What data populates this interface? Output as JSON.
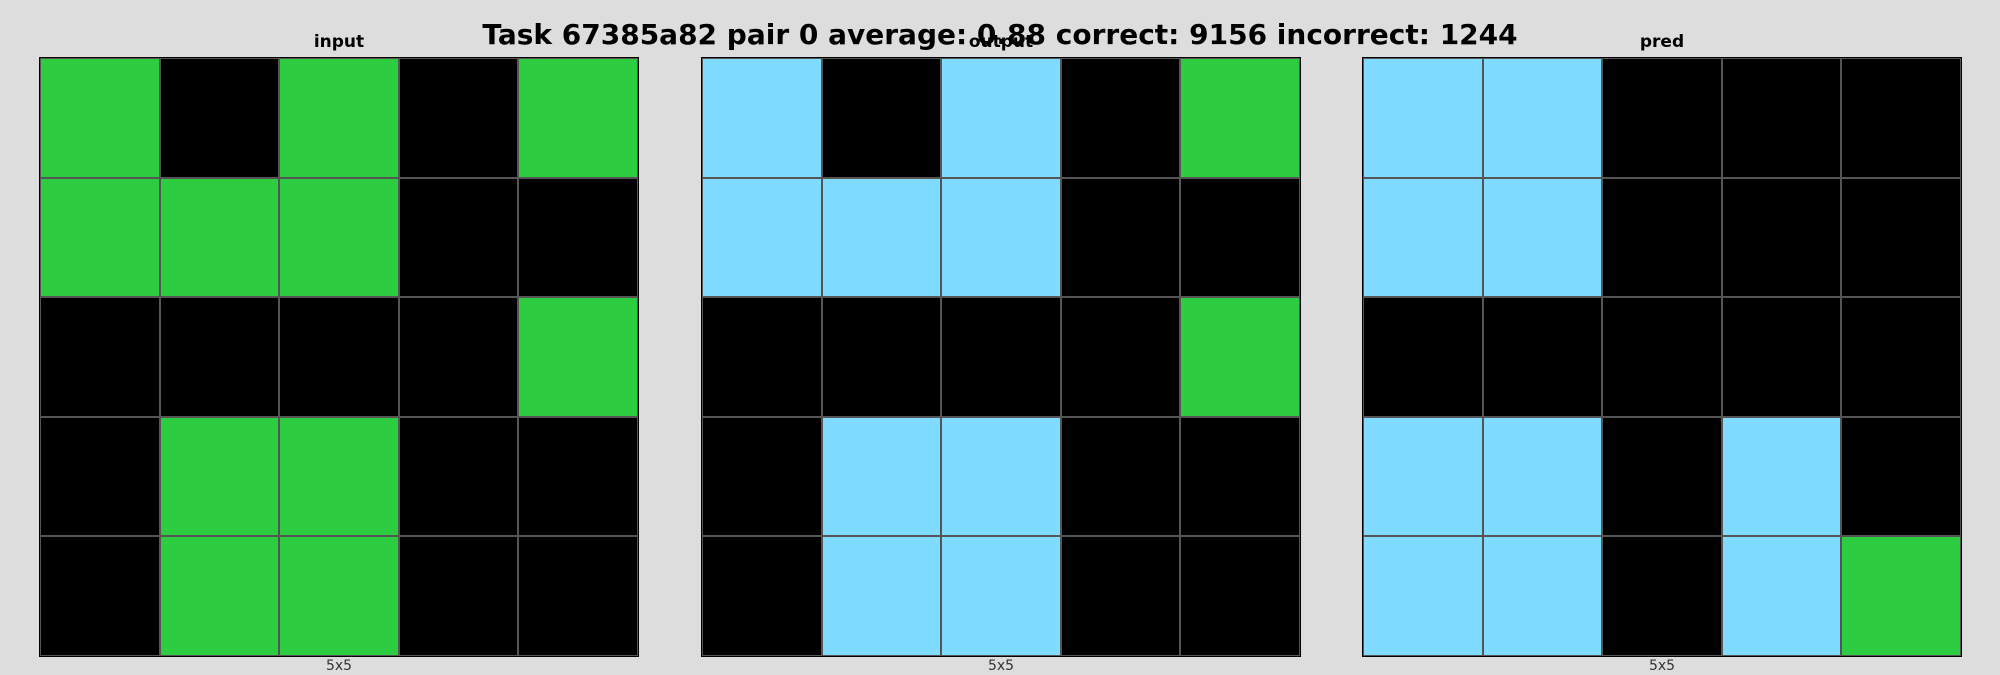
{
  "title": "Task 67385a82 pair 0 average: 0.88 correct: 9156 incorrect: 1244",
  "palette": {
    "0": "#000000",
    "3": "#2ecc40",
    "8": "#7fdbff"
  },
  "panels": [
    {
      "label": "input",
      "size_label": "5x5",
      "grid": [
        [
          3,
          0,
          3,
          0,
          3
        ],
        [
          3,
          3,
          3,
          0,
          0
        ],
        [
          0,
          0,
          0,
          0,
          3
        ],
        [
          0,
          3,
          3,
          0,
          0
        ],
        [
          0,
          3,
          3,
          0,
          0
        ]
      ]
    },
    {
      "label": "output",
      "size_label": "5x5",
      "grid": [
        [
          8,
          0,
          8,
          0,
          3
        ],
        [
          8,
          8,
          8,
          0,
          0
        ],
        [
          0,
          0,
          0,
          0,
          3
        ],
        [
          0,
          8,
          8,
          0,
          0
        ],
        [
          0,
          8,
          8,
          0,
          0
        ]
      ]
    },
    {
      "label": "pred",
      "size_label": "5x5",
      "grid": [
        [
          8,
          8,
          0,
          0,
          0
        ],
        [
          8,
          8,
          0,
          0,
          0
        ],
        [
          0,
          0,
          0,
          0,
          0
        ],
        [
          8,
          8,
          0,
          8,
          0
        ],
        [
          8,
          8,
          0,
          8,
          3
        ]
      ]
    }
  ]
}
